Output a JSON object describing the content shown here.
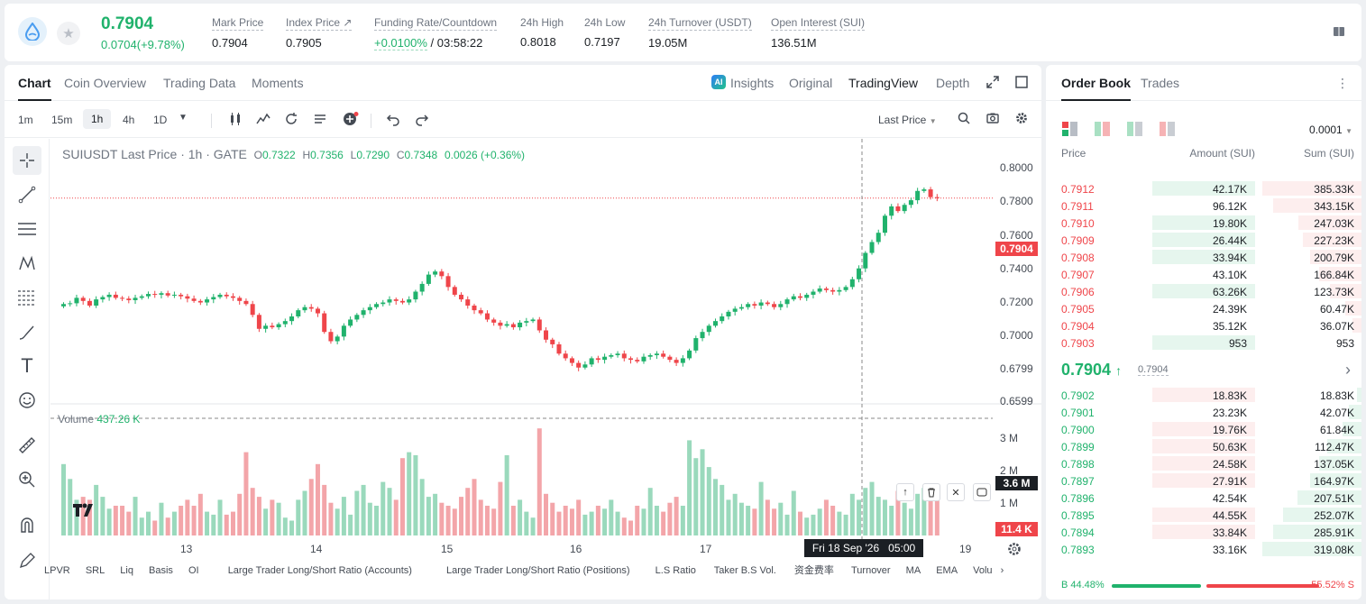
{
  "ticker": {
    "last_price": "0.7904",
    "change": "0.0704(+9.78%)",
    "stats": [
      {
        "label": "Mark Price",
        "value": "0.7904"
      },
      {
        "label": "Index Price ↗",
        "value": "0.7905"
      },
      {
        "label": "Funding Rate/Countdown",
        "value_rate": "+0.0100%",
        "value_count": "/ 03:58:22"
      },
      {
        "label": "24h High",
        "value": "0.8018"
      },
      {
        "label": "24h Low",
        "value": "0.7197"
      },
      {
        "label": "24h Turnover (USDT)",
        "value": "19.05M"
      },
      {
        "label": "Open Interest (SUI)",
        "value": "136.51M"
      }
    ]
  },
  "chart_tabs": [
    "Chart",
    "Coin Overview",
    "Trading Data",
    "Moments"
  ],
  "view_tabs": {
    "insights": "Insights",
    "original": "Original",
    "tradingview": "TradingView",
    "depth": "Depth"
  },
  "timeframes": [
    "1m",
    "15m",
    "1h",
    "4h",
    "1D"
  ],
  "active_timeframe": "1h",
  "price_type": "Last Price",
  "legend": {
    "symbol": "SUIUSDT Last Price · 1h · GATE",
    "o_label": "O",
    "o": "0.7322",
    "h_label": "H",
    "h": "0.7356",
    "l_label": "L",
    "l": "0.7290",
    "c_label": "C",
    "c": "0.7348",
    "chg": "0.0026 (+0.36%)"
  },
  "volume_legend": {
    "label": "Volume",
    "value": "437.26 K"
  },
  "price_tags": {
    "last": "0.7904",
    "vol_cursor": "3.6 M",
    "vol_last": "11.4 K"
  },
  "cursor_time": {
    "date": "Fri 18 Sep '26",
    "time": "05:00"
  },
  "bottom_indicators": [
    "LPVR",
    "SRL",
    "Liq",
    "Basis",
    "OI",
    "Large Trader Long/Short Ratio (Accounts)",
    "Large Trader Long/Short Ratio (Positions)",
    "L.S Ratio",
    "Taker B.S Vol.",
    "资金费率",
    "Turnover",
    "MA",
    "EMA",
    "Volu"
  ],
  "chart_data": {
    "type": "candlestick",
    "title": "SUIUSDT Last Price · 1h · GATE",
    "x_ticks": [
      "13",
      "14",
      "15",
      "16",
      "17",
      "19"
    ],
    "y_ticks": [
      "0.8000",
      "0.7800",
      "0.7600",
      "0.7400",
      "0.7200",
      "0.7000",
      "0.6799",
      "0.6599"
    ],
    "ylim": [
      0.6599,
      0.81
    ],
    "volume_ticks": [
      "3 M",
      "2 M",
      "1 M"
    ],
    "volume_ylim": [
      0,
      4000000
    ],
    "closes": [
      0.722,
      0.7225,
      0.726,
      0.724,
      0.721,
      0.725,
      0.7265,
      0.728,
      0.726,
      0.7255,
      0.7245,
      0.726,
      0.727,
      0.7285,
      0.728,
      0.729,
      0.7275,
      0.728,
      0.727,
      0.7255,
      0.724,
      0.723,
      0.725,
      0.7265,
      0.728,
      0.727,
      0.726,
      0.724,
      0.722,
      0.715,
      0.706,
      0.708,
      0.707,
      0.709,
      0.711,
      0.714,
      0.718,
      0.72,
      0.719,
      0.716,
      0.704,
      0.698,
      0.701,
      0.708,
      0.712,
      0.715,
      0.718,
      0.72,
      0.722,
      0.723,
      0.725,
      0.724,
      0.723,
      0.725,
      0.73,
      0.735,
      0.741,
      0.743,
      0.74,
      0.733,
      0.728,
      0.725,
      0.721,
      0.718,
      0.716,
      0.712,
      0.71,
      0.708,
      0.709,
      0.707,
      0.71,
      0.711,
      0.712,
      0.705,
      0.699,
      0.696,
      0.69,
      0.687,
      0.684,
      0.681,
      0.683,
      0.687,
      0.686,
      0.688,
      0.689,
      0.69,
      0.687,
      0.686,
      0.685,
      0.688,
      0.689,
      0.69,
      0.688,
      0.686,
      0.684,
      0.687,
      0.692,
      0.7,
      0.704,
      0.708,
      0.711,
      0.714,
      0.717,
      0.719,
      0.72,
      0.722,
      0.721,
      0.723,
      0.722,
      0.72,
      0.722,
      0.725,
      0.727,
      0.726,
      0.728,
      0.73,
      0.732,
      0.731,
      0.73,
      0.731,
      0.733,
      0.738,
      0.745,
      0.755,
      0.762,
      0.768,
      0.779,
      0.785,
      0.782,
      0.786,
      0.789,
      0.795,
      0.796,
      0.791,
      0.7904
    ],
    "volumes_M": [
      2.4,
      1.9,
      1.2,
      1.3,
      1.2,
      1.7,
      1.3,
      0.9,
      1.0,
      1.0,
      0.8,
      1.3,
      0.6,
      0.8,
      0.5,
      1.1,
      0.6,
      0.8,
      1.0,
      1.2,
      1.0,
      1.4,
      0.8,
      0.7,
      1.2,
      0.7,
      0.8,
      1.4,
      2.8,
      1.6,
      1.3,
      0.9,
      1.2,
      1.1,
      0.6,
      0.5,
      1.2,
      1.5,
      1.9,
      2.4,
      1.7,
      1.1,
      0.9,
      1.3,
      0.7,
      1.5,
      1.7,
      1.1,
      1.0,
      1.8,
      1.6,
      1.2,
      2.6,
      2.8,
      2.7,
      1.9,
      1.3,
      1.4,
      1.1,
      1.0,
      0.9,
      1.3,
      1.6,
      1.9,
      1.2,
      1.0,
      0.9,
      1.8,
      2.7,
      1.0,
      1.2,
      0.8,
      0.6,
      3.6,
      1.4,
      1.1,
      0.8,
      1.0,
      0.9,
      1.2,
      0.7,
      0.8,
      1.0,
      0.9,
      1.2,
      0.8,
      0.6,
      0.5,
      1.0,
      0.9,
      1.6,
      1.0,
      0.8,
      1.1,
      1.3,
      1.0,
      3.2,
      2.6,
      2.9,
      2.3,
      1.9,
      1.7,
      1.2,
      1.4,
      1.1,
      1.0,
      0.9,
      1.8,
      1.2,
      0.9,
      1.1,
      0.7,
      1.5,
      0.8,
      0.6,
      0.7,
      0.9,
      1.2,
      1.0,
      0.8,
      0.7,
      1.4,
      1.2,
      1.6,
      1.8,
      1.3,
      1.2,
      1.0,
      1.5,
      1.1,
      0.9,
      1.4,
      1.6,
      1.7,
      1.6,
      0.1
    ]
  },
  "orderbook": {
    "tabs": [
      "Order Book",
      "Trades"
    ],
    "precision": "0.0001",
    "headers": {
      "price": "Price",
      "amount": "Amount (SUI)",
      "sum": "Sum (SUI)"
    },
    "asks": [
      {
        "price": "0.7912",
        "amount": "42.17K",
        "sum": "385.33K",
        "amt_frac": 0.67,
        "sum_frac": 1.0
      },
      {
        "price": "0.7911",
        "amount": "96.12K",
        "sum": "343.15K",
        "amt_frac": 0.0,
        "sum_frac": 0.89
      },
      {
        "price": "0.7910",
        "amount": "19.80K",
        "sum": "247.03K",
        "amt_frac": 0.67,
        "sum_frac": 0.64
      },
      {
        "price": "0.7909",
        "amount": "26.44K",
        "sum": "227.23K",
        "amt_frac": 0.67,
        "sum_frac": 0.59
      },
      {
        "price": "0.7908",
        "amount": "33.94K",
        "sum": "200.79K",
        "amt_frac": 0.67,
        "sum_frac": 0.52
      },
      {
        "price": "0.7907",
        "amount": "43.10K",
        "sum": "166.84K",
        "amt_frac": 0.0,
        "sum_frac": 0.43
      },
      {
        "price": "0.7906",
        "amount": "63.26K",
        "sum": "123.73K",
        "amt_frac": 0.67,
        "sum_frac": 0.32
      },
      {
        "price": "0.7905",
        "amount": "24.39K",
        "sum": "60.47K",
        "amt_frac": 0.0,
        "sum_frac": 0.16
      },
      {
        "price": "0.7904",
        "amount": "35.12K",
        "sum": "36.07K",
        "amt_frac": 0.0,
        "sum_frac": 0.09
      },
      {
        "price": "0.7903",
        "amount": "953",
        "sum": "953",
        "amt_frac": 0.67,
        "sum_frac": 0.0
      }
    ],
    "mid_price": "0.7904",
    "mark_price": "0.7904",
    "bids": [
      {
        "price": "0.7902",
        "amount": "18.83K",
        "sum": "18.83K",
        "amt_frac": 0.67,
        "sum_frac": 0.05
      },
      {
        "price": "0.7901",
        "amount": "23.23K",
        "sum": "42.07K",
        "amt_frac": 0.0,
        "sum_frac": 0.13
      },
      {
        "price": "0.7900",
        "amount": "19.76K",
        "sum": "61.84K",
        "amt_frac": 0.67,
        "sum_frac": 0.19
      },
      {
        "price": "0.7899",
        "amount": "50.63K",
        "sum": "112.47K",
        "amt_frac": 0.67,
        "sum_frac": 0.35
      },
      {
        "price": "0.7898",
        "amount": "24.58K",
        "sum": "137.05K",
        "amt_frac": 0.67,
        "sum_frac": 0.43
      },
      {
        "price": "0.7897",
        "amount": "27.91K",
        "sum": "164.97K",
        "amt_frac": 0.67,
        "sum_frac": 0.52
      },
      {
        "price": "0.7896",
        "amount": "42.54K",
        "sum": "207.51K",
        "amt_frac": 0.0,
        "sum_frac": 0.65
      },
      {
        "price": "0.7895",
        "amount": "44.55K",
        "sum": "252.07K",
        "amt_frac": 0.67,
        "sum_frac": 0.79
      },
      {
        "price": "0.7894",
        "amount": "33.84K",
        "sum": "285.91K",
        "amt_frac": 0.67,
        "sum_frac": 0.89
      },
      {
        "price": "0.7893",
        "amount": "33.16K",
        "sum": "319.08K",
        "amt_frac": 0.0,
        "sum_frac": 1.0
      }
    ],
    "ratio": {
      "buy": "B 44.48%",
      "sell": "55.52% S",
      "buy_frac": 0.4448
    }
  },
  "colors": {
    "up": "#20b26c",
    "down": "#ef454a",
    "up_bg": "#e6f6ee",
    "down_bg": "#fdeeee"
  }
}
